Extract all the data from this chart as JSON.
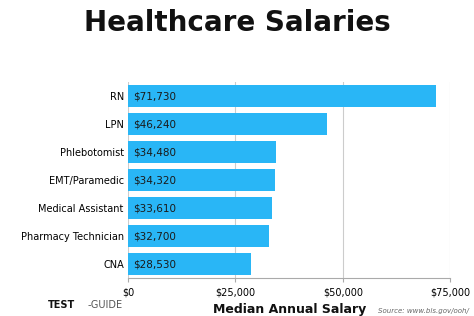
{
  "title": "Healthcare Salaries",
  "categories": [
    "CNA",
    "Pharmacy Technician",
    "Medical Assistant",
    "EMT/Paramedic",
    "Phlebotomist",
    "LPN",
    "RN"
  ],
  "values": [
    28530,
    32700,
    33610,
    34320,
    34480,
    46240,
    71730
  ],
  "labels": [
    "$28,530",
    "$32,700",
    "$33,610",
    "$34,320",
    "$34,480",
    "$46,240",
    "$71,730"
  ],
  "bar_color": "#29b6f6",
  "background_color": "#ffffff",
  "xlabel": "Median Annual Salary",
  "xlim": [
    0,
    75000
  ],
  "xticks": [
    0,
    25000,
    50000,
    75000
  ],
  "xtick_labels": [
    "$0",
    "$25,000",
    "$50,000",
    "$75,000"
  ],
  "title_fontsize": 20,
  "bar_label_fontsize": 7.5,
  "xlabel_fontsize": 9,
  "ytick_fontsize": 7,
  "xtick_fontsize": 7,
  "source_text": "Source: www.bls.gov/ooh/",
  "logo_text_test": "TEST",
  "logo_text_guide": "-GUIDE",
  "bar_label_color": "#1a1a1a",
  "text_color": "#111111",
  "grid_color": "#cccccc",
  "logo_color": "#29b6f6"
}
